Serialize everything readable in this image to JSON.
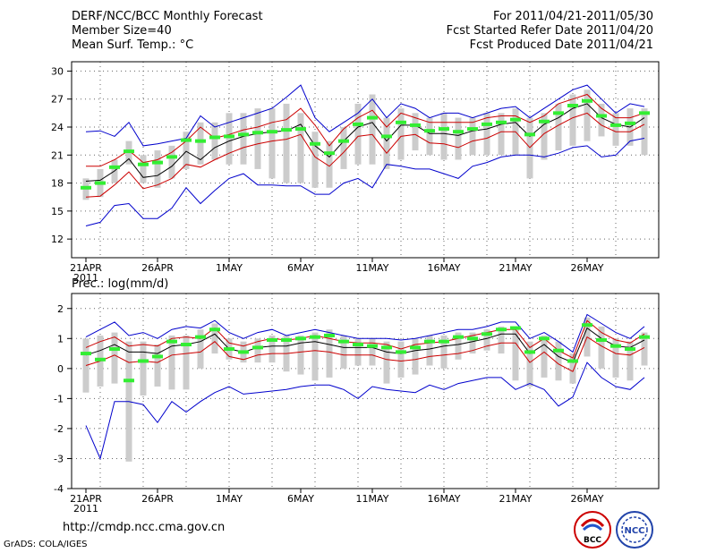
{
  "header": {
    "line1_left": "DERF/NCC/BCC Monthly Forecast",
    "line2_left": "Member Size=40",
    "line3_left": "Mean Surf. Temp.: °C",
    "line1_right": "For 2011/04/21-2011/05/30",
    "line2_right": "Fcst Started Refer Date 2011/04/20",
    "line3_right": "Fcst Produced Date 2011/04/21"
  },
  "footer": {
    "url": "http://cmdp.ncc.cma.gov.cn",
    "credit": "GrADS: COLA/IGES",
    "logo_bcc_text": "BCC",
    "logo_ncc_text": "NCC"
  },
  "colors": {
    "envelope": "#0000cc",
    "spread": "#cc0000",
    "mean": "#000000",
    "obs_bar": "#cccccc",
    "obs_mark": "#33ee33",
    "grid": "#666666"
  },
  "chart_data": [
    {
      "type": "line",
      "title": "Mean Surf. Temp.: °C",
      "ylim": [
        10,
        31
      ],
      "yticks": [
        12,
        15,
        18,
        21,
        24,
        27,
        30
      ],
      "x_tick_labels": [
        {
          "day": 1,
          "label": "21APR",
          "sub": "2011"
        },
        {
          "day": 6,
          "label": "26APR"
        },
        {
          "day": 11,
          "label": "1MAY"
        },
        {
          "day": 16,
          "label": "6MAY"
        },
        {
          "day": 21,
          "label": "11MAY"
        },
        {
          "day": 26,
          "label": "16MAY"
        },
        {
          "day": 31,
          "label": "21MAY"
        },
        {
          "day": 36,
          "label": "26MAY"
        }
      ],
      "x_days": 40,
      "series": [
        {
          "name": "max",
          "role": "envelope",
          "values": [
            23.5,
            23.6,
            23,
            24.5,
            22,
            22.2,
            22.5,
            22.8,
            25.2,
            24,
            24.5,
            25,
            25.5,
            26,
            27.2,
            28.5,
            25,
            23.5,
            24.5,
            25.5,
            27,
            25,
            26.5,
            26,
            25,
            25.5,
            25.5,
            25,
            25.5,
            26,
            26.2,
            25,
            26,
            27,
            28,
            28.5,
            27,
            25.5,
            26.5,
            26.2
          ]
        },
        {
          "name": "upper",
          "role": "spread",
          "values": [
            19.8,
            19.8,
            20.5,
            21.5,
            20.2,
            20.5,
            21.3,
            22.5,
            24,
            22.8,
            23.2,
            23.7,
            24,
            24.5,
            24.8,
            26,
            24.2,
            22,
            23.8,
            25,
            25.8,
            24,
            25.5,
            25,
            24.5,
            24.5,
            24.5,
            24.5,
            25,
            25.2,
            25.2,
            24.5,
            25.2,
            26.5,
            27,
            27.5,
            26,
            25,
            25,
            25.5
          ]
        },
        {
          "name": "mean",
          "role": "mean",
          "values": [
            18.2,
            18.3,
            19.3,
            20.6,
            18.6,
            18.8,
            19.8,
            21.4,
            20.5,
            21.8,
            22.5,
            23,
            23.3,
            23.5,
            23.6,
            24.3,
            22,
            20.8,
            22.5,
            24,
            24.5,
            22.5,
            24.2,
            24.2,
            23.3,
            23.3,
            23.1,
            23.6,
            23.8,
            24.3,
            24.5,
            23,
            24.3,
            25,
            26,
            26.5,
            25,
            24.3,
            24,
            25
          ]
        },
        {
          "name": "lower",
          "role": "spread",
          "values": [
            16.5,
            16.6,
            17.8,
            19.2,
            17.4,
            17.8,
            18.5,
            20,
            19.7,
            20.5,
            21.2,
            21.8,
            22.2,
            22.5,
            22.7,
            23.2,
            20.8,
            19.8,
            21.3,
            23,
            23.2,
            21.2,
            23,
            23.2,
            22.3,
            22.2,
            21.8,
            22.5,
            22.8,
            23.5,
            23.5,
            21.8,
            23.3,
            24.2,
            25,
            25.5,
            24.2,
            23.5,
            23.5,
            24.3
          ]
        },
        {
          "name": "min",
          "role": "envelope",
          "values": [
            13.4,
            13.8,
            15.6,
            15.8,
            14.2,
            14.2,
            15.3,
            17.5,
            15.8,
            17.2,
            18.5,
            19,
            17.8,
            17.8,
            17.7,
            17.7,
            16.8,
            16.8,
            18,
            18.5,
            17.5,
            20,
            19.8,
            19.5,
            19.5,
            19,
            18.5,
            19.8,
            20.2,
            20.8,
            21,
            21,
            20.8,
            21.2,
            21.8,
            22,
            20.8,
            21,
            22.5,
            22.8
          ]
        }
      ],
      "obs_bars": [
        {
          "day": 1,
          "low": 16.2,
          "high": 18.5,
          "mark": 17.5
        },
        {
          "day": 2,
          "low": 16.5,
          "high": 19.5,
          "mark": 18
        },
        {
          "day": 3,
          "low": 18,
          "high": 20.5,
          "mark": 19.7
        },
        {
          "day": 4,
          "low": 20,
          "high": 22.5,
          "mark": 21.4
        },
        {
          "day": 5,
          "low": 18,
          "high": 21,
          "mark": 20
        },
        {
          "day": 6,
          "low": 17.5,
          "high": 21.5,
          "mark": 20.2
        },
        {
          "day": 7,
          "low": 18.5,
          "high": 22,
          "mark": 20.8
        },
        {
          "day": 8,
          "low": 19.5,
          "high": 23.5,
          "mark": 22.6
        },
        {
          "day": 9,
          "low": 20,
          "high": 24.5,
          "mark": 22.5
        },
        {
          "day": 10,
          "low": 20.5,
          "high": 24.5,
          "mark": 22.9
        },
        {
          "day": 11,
          "low": 20,
          "high": 25.5,
          "mark": 23
        },
        {
          "day": 12,
          "low": 20,
          "high": 25.5,
          "mark": 23.2
        },
        {
          "day": 13,
          "low": 19.5,
          "high": 26,
          "mark": 23.4
        },
        {
          "day": 14,
          "low": 18.5,
          "high": 26,
          "mark": 23.5
        },
        {
          "day": 15,
          "low": 18,
          "high": 26.5,
          "mark": 23.7
        },
        {
          "day": 16,
          "low": 18,
          "high": 25.5,
          "mark": 23.8
        },
        {
          "day": 17,
          "low": 17.5,
          "high": 23.5,
          "mark": 22.2
        },
        {
          "day": 18,
          "low": 17.5,
          "high": 22.5,
          "mark": 21.2
        },
        {
          "day": 19,
          "low": 19.5,
          "high": 24,
          "mark": 22.5
        },
        {
          "day": 20,
          "low": 20,
          "high": 26.5,
          "mark": 24.3
        },
        {
          "day": 21,
          "low": 20,
          "high": 27.5,
          "mark": 25
        },
        {
          "day": 22,
          "low": 19.5,
          "high": 25,
          "mark": 23
        },
        {
          "day": 23,
          "low": 20.5,
          "high": 26,
          "mark": 24.5
        },
        {
          "day": 24,
          "low": 21.5,
          "high": 25.5,
          "mark": 24.2
        },
        {
          "day": 25,
          "low": 21,
          "high": 25,
          "mark": 23.6
        },
        {
          "day": 26,
          "low": 20.5,
          "high": 25.5,
          "mark": 23.8
        },
        {
          "day": 27,
          "low": 20.5,
          "high": 25,
          "mark": 23.5
        },
        {
          "day": 28,
          "low": 21,
          "high": 25,
          "mark": 23.8
        },
        {
          "day": 29,
          "low": 21,
          "high": 25.5,
          "mark": 24.3
        },
        {
          "day": 30,
          "low": 21,
          "high": 25.5,
          "mark": 24.5
        },
        {
          "day": 31,
          "low": 21,
          "high": 26,
          "mark": 24.8
        },
        {
          "day": 32,
          "low": 18.5,
          "high": 25,
          "mark": 23.2
        },
        {
          "day": 33,
          "low": 20.5,
          "high": 25.5,
          "mark": 24.6
        },
        {
          "day": 34,
          "low": 21.5,
          "high": 26.5,
          "mark": 25.5
        },
        {
          "day": 35,
          "low": 22,
          "high": 27.5,
          "mark": 26.3
        },
        {
          "day": 36,
          "low": 22.5,
          "high": 28,
          "mark": 26.8
        },
        {
          "day": 37,
          "low": 23,
          "high": 26.5,
          "mark": 25.2
        },
        {
          "day": 38,
          "low": 22,
          "high": 25.5,
          "mark": 24.2
        },
        {
          "day": 39,
          "low": 22,
          "high": 26,
          "mark": 24.4
        },
        {
          "day": 40,
          "low": 21,
          "high": 26,
          "mark": 25.5
        }
      ]
    },
    {
      "type": "line",
      "title": "Prec.: log(mm/d)",
      "ylim": [
        -4,
        2.5
      ],
      "yticks": [
        -4,
        -3,
        -2,
        -1,
        0,
        1,
        2
      ],
      "x_tick_labels": [
        {
          "day": 1,
          "label": "21APR",
          "sub": "2011"
        },
        {
          "day": 6,
          "label": "26APR"
        },
        {
          "day": 11,
          "label": "1MAY"
        },
        {
          "day": 16,
          "label": "6MAY"
        },
        {
          "day": 21,
          "label": "11MAY"
        },
        {
          "day": 26,
          "label": "16MAY"
        },
        {
          "day": 31,
          "label": "21MAY"
        },
        {
          "day": 36,
          "label": "26MAY"
        }
      ],
      "x_days": 40,
      "series": [
        {
          "name": "max",
          "role": "envelope",
          "values": [
            1.05,
            1.3,
            1.55,
            1.1,
            1.2,
            1.0,
            1.3,
            1.4,
            1.35,
            1.6,
            1.2,
            1.0,
            1.2,
            1.3,
            1.1,
            1.2,
            1.3,
            1.2,
            1.1,
            1.0,
            1.0,
            1.0,
            0.95,
            1.0,
            1.1,
            1.2,
            1.3,
            1.3,
            1.4,
            1.55,
            1.55,
            1.0,
            1.2,
            0.9,
            0.55,
            1.8,
            1.5,
            1.2,
            1.0,
            1.4
          ]
        },
        {
          "name": "upper",
          "role": "spread",
          "values": [
            0.7,
            0.9,
            1.05,
            0.75,
            0.8,
            0.75,
            1.0,
            1.05,
            1.0,
            1.35,
            0.85,
            0.75,
            0.9,
            1.0,
            0.95,
            1.0,
            1.1,
            1.0,
            0.9,
            0.85,
            0.85,
            0.8,
            0.65,
            0.8,
            0.85,
            0.9,
            1.0,
            1.1,
            1.2,
            1.3,
            1.3,
            0.7,
            1.0,
            0.6,
            0.35,
            1.6,
            1.2,
            0.95,
            0.85,
            1.15
          ]
        },
        {
          "name": "mean",
          "role": "mean",
          "values": [
            0.45,
            0.6,
            0.8,
            0.55,
            0.55,
            0.5,
            0.75,
            0.8,
            0.9,
            1.15,
            0.65,
            0.55,
            0.7,
            0.75,
            0.75,
            0.85,
            0.9,
            0.8,
            0.7,
            0.7,
            0.7,
            0.55,
            0.5,
            0.6,
            0.65,
            0.75,
            0.8,
            0.9,
            1.0,
            1.15,
            1.15,
            0.5,
            0.8,
            0.4,
            0.2,
            1.35,
            1.0,
            0.75,
            0.7,
            0.95
          ]
        },
        {
          "name": "lower",
          "role": "spread",
          "values": [
            0.1,
            0.25,
            0.45,
            0.2,
            0.25,
            0.2,
            0.45,
            0.5,
            0.55,
            0.9,
            0.4,
            0.3,
            0.45,
            0.5,
            0.5,
            0.55,
            0.6,
            0.55,
            0.45,
            0.45,
            0.45,
            0.3,
            0.25,
            0.3,
            0.4,
            0.45,
            0.5,
            0.6,
            0.75,
            0.85,
            0.85,
            0.2,
            0.55,
            0.15,
            -0.1,
            1.05,
            0.75,
            0.5,
            0.45,
            0.7
          ]
        },
        {
          "name": "min",
          "role": "envelope",
          "values": [
            -1.9,
            -3.0,
            -1.1,
            -1.1,
            -1.2,
            -1.8,
            -1.1,
            -1.45,
            -1.1,
            -0.8,
            -0.6,
            -0.85,
            -0.8,
            -0.75,
            -0.7,
            -0.6,
            -0.55,
            -0.55,
            -0.7,
            -1.0,
            -0.6,
            -0.7,
            -0.75,
            -0.8,
            -0.55,
            -0.7,
            -0.5,
            -0.4,
            -0.3,
            -0.3,
            -0.7,
            -0.5,
            -0.7,
            -1.25,
            -0.95,
            0.2,
            -0.3,
            -0.6,
            -0.7,
            -0.3
          ]
        }
      ],
      "obs_bars": [
        {
          "day": 1,
          "low": -0.8,
          "high": 1.0,
          "mark": 0.5
        },
        {
          "day": 2,
          "low": -0.6,
          "high": 1.1,
          "mark": 0.3
        },
        {
          "day": 3,
          "low": -0.5,
          "high": 1.2,
          "mark": 0.65
        },
        {
          "day": 4,
          "low": -3.1,
          "high": 0.9,
          "mark": -0.4
        },
        {
          "day": 5,
          "low": -0.9,
          "high": 0.9,
          "mark": 0.25
        },
        {
          "day": 6,
          "low": -0.6,
          "high": 0.8,
          "mark": 0.4
        },
        {
          "day": 7,
          "low": -0.7,
          "high": 1.1,
          "mark": 0.9
        },
        {
          "day": 8,
          "low": -0.7,
          "high": 1.1,
          "mark": 0.8
        },
        {
          "day": 9,
          "low": 0.0,
          "high": 1.3,
          "mark": 1.05
        },
        {
          "day": 10,
          "low": 0.5,
          "high": 1.5,
          "mark": 1.3
        },
        {
          "day": 11,
          "low": 0.3,
          "high": 1.0,
          "mark": 0.65
        },
        {
          "day": 12,
          "low": 0.2,
          "high": 0.9,
          "mark": 0.55
        },
        {
          "day": 13,
          "low": 0.2,
          "high": 1.0,
          "mark": 0.7
        },
        {
          "day": 14,
          "low": 0.2,
          "high": 1.1,
          "mark": 0.95
        },
        {
          "day": 15,
          "low": -0.1,
          "high": 1.1,
          "mark": 0.95
        },
        {
          "day": 16,
          "low": -0.2,
          "high": 1.1,
          "mark": 1.0
        },
        {
          "day": 17,
          "low": -0.4,
          "high": 1.2,
          "mark": 1.05
        },
        {
          "day": 18,
          "low": -0.3,
          "high": 1.3,
          "mark": 1.1
        },
        {
          "day": 19,
          "low": 0.0,
          "high": 1.1,
          "mark": 0.9
        },
        {
          "day": 20,
          "low": 0.1,
          "high": 1.0,
          "mark": 0.8
        },
        {
          "day": 21,
          "low": 0.1,
          "high": 1.0,
          "mark": 0.75
        },
        {
          "day": 22,
          "low": -0.5,
          "high": 0.9,
          "mark": 0.7
        },
        {
          "day": 23,
          "low": -0.3,
          "high": 0.9,
          "mark": 0.55
        },
        {
          "day": 24,
          "low": -0.2,
          "high": 1.0,
          "mark": 0.7
        },
        {
          "day": 25,
          "low": 0.1,
          "high": 1.1,
          "mark": 0.9
        },
        {
          "day": 26,
          "low": 0.0,
          "high": 1.1,
          "mark": 0.9
        },
        {
          "day": 27,
          "low": 0.3,
          "high": 1.2,
          "mark": 1.05
        },
        {
          "day": 28,
          "low": 0.5,
          "high": 1.2,
          "mark": 1.0
        },
        {
          "day": 29,
          "low": 0.6,
          "high": 1.3,
          "mark": 1.15
        },
        {
          "day": 30,
          "low": 0.5,
          "high": 1.4,
          "mark": 1.3
        },
        {
          "day": 31,
          "low": -0.4,
          "high": 1.4,
          "mark": 1.35
        },
        {
          "day": 32,
          "low": -0.6,
          "high": 0.9,
          "mark": 0.55
        },
        {
          "day": 33,
          "low": -0.3,
          "high": 1.1,
          "mark": 1.0
        },
        {
          "day": 34,
          "low": -0.4,
          "high": 0.9,
          "mark": 0.6
        },
        {
          "day": 35,
          "low": -0.5,
          "high": 0.5,
          "mark": 0.25
        },
        {
          "day": 36,
          "low": 0.4,
          "high": 1.7,
          "mark": 1.45
        },
        {
          "day": 37,
          "low": 0.0,
          "high": 1.4,
          "mark": 0.95
        },
        {
          "day": 38,
          "low": -0.3,
          "high": 1.0,
          "mark": 0.75
        },
        {
          "day": 39,
          "low": -0.4,
          "high": 0.9,
          "mark": 0.65
        },
        {
          "day": 40,
          "low": 0.1,
          "high": 1.2,
          "mark": 1.05
        }
      ]
    }
  ]
}
